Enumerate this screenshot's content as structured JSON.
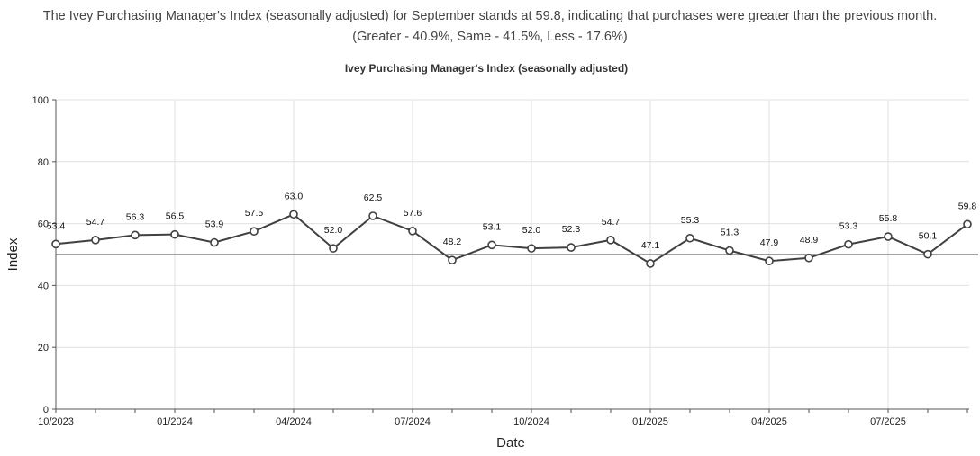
{
  "summary": {
    "line1": "The Ivey Purchasing Manager's Index (seasonally adjusted) for September stands at 59.8, indicating that purchases were greater than the previous month.",
    "line2": "(Greater - 40.9%, Same - 41.5%, Less - 17.6%)"
  },
  "chart_data": {
    "type": "line",
    "title": "Ivey Purchasing Manager's Index (seasonally adjusted)",
    "xlabel": "Date",
    "ylabel": "Index",
    "ylim": [
      0,
      100
    ],
    "yticks": [
      0,
      20,
      40,
      60,
      80,
      100
    ],
    "reference_line": 50,
    "grid": true,
    "x": [
      "10/2023",
      "11/2023",
      "12/2023",
      "01/2024",
      "02/2024",
      "03/2024",
      "04/2024",
      "05/2024",
      "06/2024",
      "07/2024",
      "08/2024",
      "09/2024",
      "10/2024",
      "11/2024",
      "12/2024",
      "01/2025",
      "02/2025",
      "03/2025",
      "04/2025",
      "05/2025",
      "06/2025",
      "07/2025",
      "08/2025",
      "09/2025"
    ],
    "xtick_labels": [
      "10/2023",
      "01/2024",
      "04/2024",
      "07/2024",
      "10/2024",
      "01/2025",
      "04/2025",
      "07/2025"
    ],
    "values": [
      53.4,
      54.7,
      56.3,
      56.5,
      53.9,
      57.5,
      63.0,
      52.0,
      62.5,
      57.6,
      48.2,
      53.1,
      52.0,
      52.3,
      54.7,
      47.1,
      55.3,
      51.3,
      47.9,
      48.9,
      53.3,
      55.8,
      50.1,
      59.8
    ],
    "colors": {
      "line": "#404040",
      "reference": "#808080",
      "grid": "#e0e0e0"
    }
  }
}
